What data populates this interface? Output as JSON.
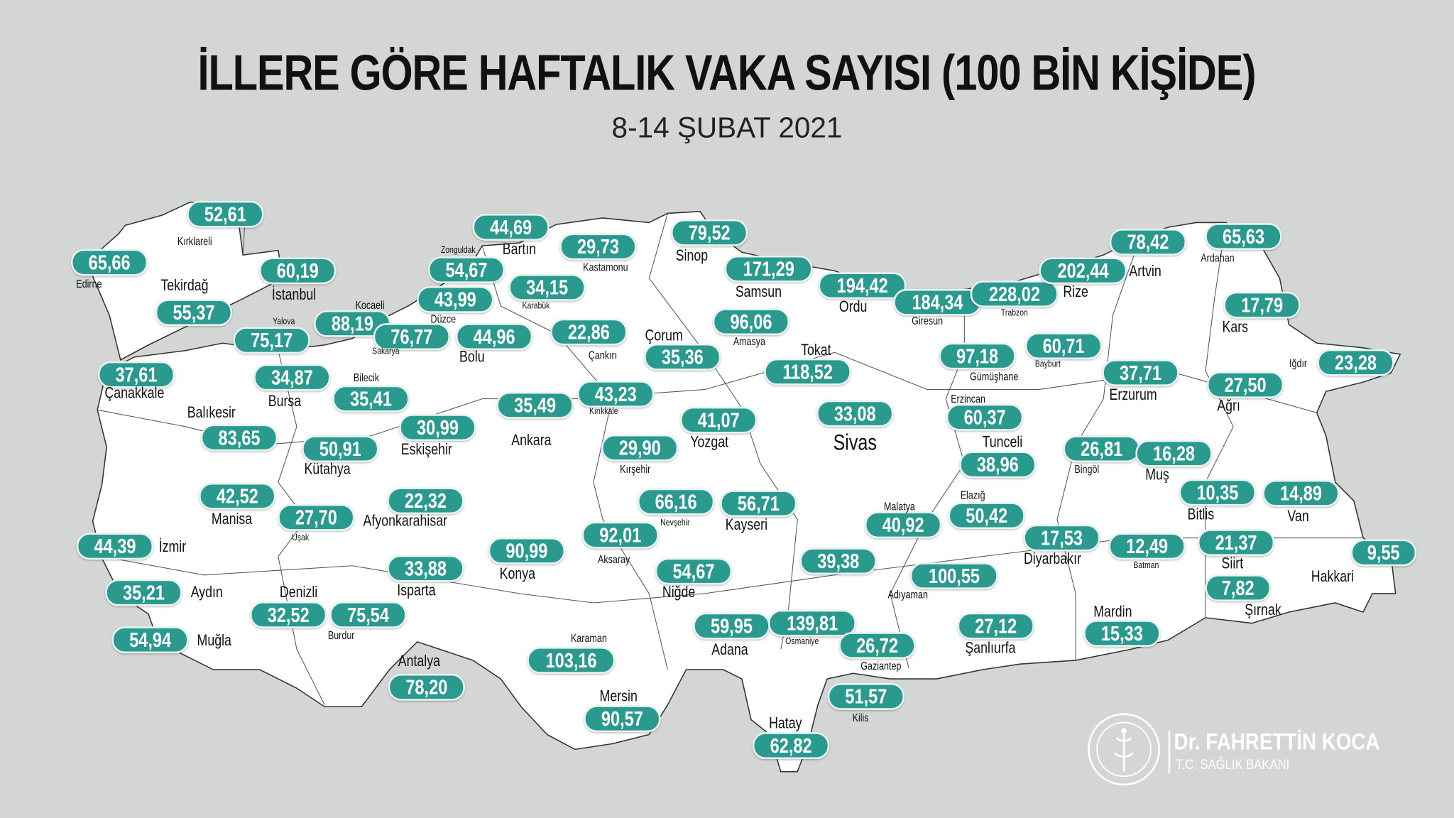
{
  "title": "İLLERE GÖRE HAFTALIK VAKA SAYISI (100 BİN KİŞİDE)",
  "subtitle": "8-14 ŞUBAT 2021",
  "colors": {
    "background": "#d4d5d5",
    "map_fill": "#ffffff",
    "badge": "#2a9a8f",
    "badge_text": "#ffffff"
  },
  "provinces": [
    {
      "name": "Kırklareli",
      "value": "52,61"
    },
    {
      "name": "Edirne",
      "value": "65,66"
    },
    {
      "name": "Tekirdağ",
      "value": "55,37"
    },
    {
      "name": "İstanbul",
      "value": "60,19"
    },
    {
      "name": "Kocaeli",
      "value": "88,19"
    },
    {
      "name": "Yalova",
      "value": "75,17"
    },
    {
      "name": "Sakarya",
      "value": "76,77"
    },
    {
      "name": "Düzce",
      "value": "43,99"
    },
    {
      "name": "Zonguldak",
      "value": "54,67"
    },
    {
      "name": "Bartın",
      "value": "44,69"
    },
    {
      "name": "Karabük",
      "value": "34,15"
    },
    {
      "name": "Kastamonu",
      "value": "29,73"
    },
    {
      "name": "Sinop",
      "value": "79,52"
    },
    {
      "name": "Bolu",
      "value": "44,96"
    },
    {
      "name": "Çankırı",
      "value": "22,86"
    },
    {
      "name": "Çorum",
      "value": "35,36"
    },
    {
      "name": "Samsun",
      "value": "171,29"
    },
    {
      "name": "Amasya",
      "value": "96,06"
    },
    {
      "name": "Ordu",
      "value": "194,42"
    },
    {
      "name": "Tokat",
      "value": "118,52"
    },
    {
      "name": "Giresun",
      "value": "184,34"
    },
    {
      "name": "Trabzon",
      "value": "228,02"
    },
    {
      "name": "Rize",
      "value": "202,44"
    },
    {
      "name": "Artvin",
      "value": "78,42"
    },
    {
      "name": "Ardahan",
      "value": "65,63"
    },
    {
      "name": "Kars",
      "value": "17,79"
    },
    {
      "name": "Gümüşhane",
      "value": "97,18"
    },
    {
      "name": "Bayburt",
      "value": "60,71"
    },
    {
      "name": "Erzurum",
      "value": "37,71"
    },
    {
      "name": "Iğdır",
      "value": "23,28"
    },
    {
      "name": "Ağrı",
      "value": "27,50"
    },
    {
      "name": "Çanakkale",
      "value": "37,61"
    },
    {
      "name": "Bursa",
      "value": "34,87"
    },
    {
      "name": "Bilecik",
      "value": "35,41"
    },
    {
      "name": "Balıkesir",
      "value": "83,65"
    },
    {
      "name": "Eskişehir",
      "value": "30,99"
    },
    {
      "name": "Ankara",
      "value": "35,49"
    },
    {
      "name": "Kırıkkale",
      "value": "43,23"
    },
    {
      "name": "Yozgat",
      "value": "41,07"
    },
    {
      "name": "Sivas",
      "value": "33,08"
    },
    {
      "name": "Erzincan",
      "value": "60,37"
    },
    {
      "name": "Tunceli",
      "value": "38,96"
    },
    {
      "name": "Bingöl",
      "value": "26,81"
    },
    {
      "name": "Muş",
      "value": "16,28"
    },
    {
      "name": "Kütahya",
      "value": "50,91"
    },
    {
      "name": "Kırşehir",
      "value": "29,90"
    },
    {
      "name": "Manisa",
      "value": "42,52"
    },
    {
      "name": "Uşak",
      "value": "27,70"
    },
    {
      "name": "Afyonkarahisar",
      "value": "22,32"
    },
    {
      "name": "Nevşehir",
      "value": "66,16"
    },
    {
      "name": "Kayseri",
      "value": "56,71"
    },
    {
      "name": "Malatya",
      "value": "40,92"
    },
    {
      "name": "Elazığ",
      "value": "50,42"
    },
    {
      "name": "Bitlis",
      "value": "10,35"
    },
    {
      "name": "Van",
      "value": "14,89"
    },
    {
      "name": "İzmir",
      "value": "44,39"
    },
    {
      "name": "Aksaray",
      "value": "92,01"
    },
    {
      "name": "Konya",
      "value": "90,99"
    },
    {
      "name": "Diyarbakır",
      "value": "17,53"
    },
    {
      "name": "Batman",
      "value": "12,49"
    },
    {
      "name": "Siirt",
      "value": "21,37"
    },
    {
      "name": "Hakkari",
      "value": "9,55"
    },
    {
      "name": "Isparta",
      "value": "33,88"
    },
    {
      "name": "Niğde",
      "value": "54,67"
    },
    {
      "name": "",
      "value": "39,38"
    },
    {
      "name": "Adıyaman",
      "value": "100,55"
    },
    {
      "name": "Aydın",
      "value": "35,21"
    },
    {
      "name": "Denizli",
      "value": "32,52"
    },
    {
      "name": "Burdur",
      "value": "75,54"
    },
    {
      "name": "Şırnak",
      "value": "7,82"
    },
    {
      "name": "Mardin",
      "value": "15,33"
    },
    {
      "name": "Muğla",
      "value": "54,94"
    },
    {
      "name": "Karaman",
      "value": "103,16"
    },
    {
      "name": "Antalya",
      "value": "78,20"
    },
    {
      "name": "Adana",
      "value": "59,95"
    },
    {
      "name": "Osmaniye",
      "value": "139,81"
    },
    {
      "name": "Gaziantep",
      "value": "26,72"
    },
    {
      "name": "Şanlıurfa",
      "value": "27,12"
    },
    {
      "name": "Kilis",
      "value": "51,57"
    },
    {
      "name": "Mersin",
      "value": "90,57"
    },
    {
      "name": "Hatay",
      "value": "62,82"
    }
  ],
  "signature": {
    "name": "Dr. FAHRETTİN KOCA",
    "role": "T.C. SAĞLIK BAKANI",
    "emblem": "ministry-of-health-seal"
  }
}
